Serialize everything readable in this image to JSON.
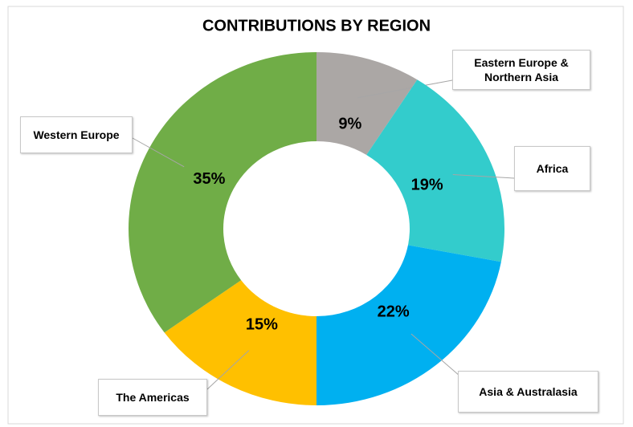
{
  "chart_data": {
    "type": "donut",
    "title": "CONTRIBUTIONS BY REGION",
    "categories": [
      "Eastern Europe & Northern Asia",
      "Africa",
      "Asia & Australasia",
      "The Americas",
      "Western Europe"
    ],
    "values": [
      9,
      19,
      22,
      15,
      35
    ],
    "value_labels": [
      "9%",
      "19%",
      "22%",
      "15%",
      "35%"
    ],
    "colors": [
      "#aba7a5",
      "#33cccc",
      "#00b0f0",
      "#ffc000",
      "#70ad47"
    ]
  }
}
